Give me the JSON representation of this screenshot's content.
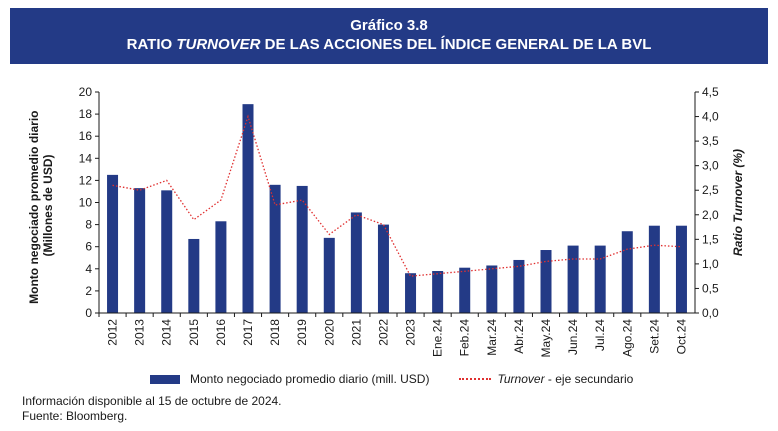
{
  "header": {
    "number": "Gráfico 3.8",
    "title_pre": "RATIO ",
    "title_italic": "TURNOVER",
    "title_post": " DE LAS ACCIONES DEL ÍNDICE GENERAL DE LA BVL"
  },
  "colors": {
    "bar": "#233a86",
    "line": "#e03030",
    "header_bg": "#233a86"
  },
  "legend": {
    "bar_label": "Monto negociado promedio diario (mill. USD)",
    "line_label_italic": "Turnover",
    "line_label_rest": " - eje secundario"
  },
  "footnote": {
    "line1": "Información disponible al 15 de octubre de 2024.",
    "line2": "Fuente: Bloomberg."
  },
  "chart_data": {
    "type": "bar",
    "title": "RATIO TURNOVER DE LAS ACCIONES DEL ÍNDICE GENERAL DE LA BVL",
    "categories": [
      "2012",
      "2013",
      "2014",
      "2015",
      "2016",
      "2017",
      "2018",
      "2019",
      "2020",
      "2021",
      "2022",
      "2023",
      "Ene.24",
      "Feb.24",
      "Mar.24",
      "Abr.24",
      "May.24",
      "Jun.24",
      "Jul.24",
      "Ago.24",
      "Set.24",
      "Oct.24"
    ],
    "series": [
      {
        "name": "Monto negociado promedio diario (mill. USD)",
        "type": "bar",
        "axis": "left",
        "values": [
          12.5,
          11.3,
          11.1,
          6.7,
          8.3,
          18.9,
          11.6,
          11.5,
          6.8,
          9.1,
          8.0,
          3.6,
          3.8,
          4.1,
          4.3,
          4.8,
          5.7,
          6.1,
          6.1,
          7.4,
          7.9,
          7.9
        ]
      },
      {
        "name": "Turnover - eje secundario",
        "type": "line",
        "axis": "right",
        "values": [
          2.6,
          2.5,
          2.7,
          1.9,
          2.3,
          4.0,
          2.2,
          2.3,
          1.6,
          2.0,
          1.8,
          0.75,
          0.8,
          0.85,
          0.9,
          0.95,
          1.05,
          1.1,
          1.1,
          1.3,
          1.38,
          1.35
        ]
      }
    ],
    "ylabel": "Monto negociado promedio diario (Millones de USD)",
    "ylabel_lines": [
      "Monto negociado promedio diario",
      "(Millones de USD)"
    ],
    "y2label": "Ratio Turnover (%)",
    "y2label_pre": "Ratio ",
    "y2label_italic": "Turnover",
    "y2label_post": " (%)",
    "ylim": [
      0,
      20
    ],
    "y2lim": [
      0,
      4.5
    ],
    "yticks": [
      "0",
      "2",
      "4",
      "6",
      "8",
      "10",
      "12",
      "14",
      "16",
      "18",
      "20"
    ],
    "y2ticks": [
      "0,0",
      "0,5",
      "1,0",
      "1,5",
      "2,0",
      "2,5",
      "3,0",
      "3,5",
      "4,0",
      "4,5"
    ],
    "grid": false,
    "legend_position": "bottom"
  }
}
